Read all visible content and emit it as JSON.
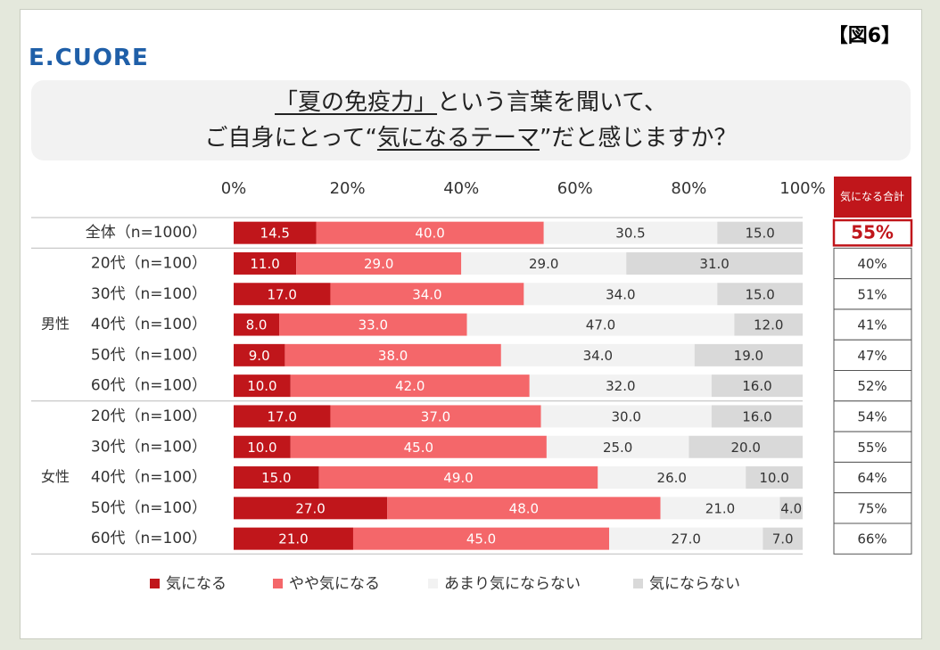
{
  "header": {
    "logo": "E.CUORE",
    "figure_label": "【図6】",
    "title": [
      [
        "「夏の免疫力」",
        "という言葉を聞いて、"
      ],
      [
        "ご自身にとって“",
        "気になるテーマ",
        "”だと感じますか？"
      ]
    ]
  },
  "chart_data": {
    "type": "stacked-bar-horizontal",
    "categories": [
      "全体（n=1000）",
      "20代（n=100）",
      "30代（n=100）",
      "40代（n=100）",
      "50代（n=100）",
      "60代（n=100）",
      "20代（n=100）",
      "30代（n=100）",
      "40代（n=100）",
      "50代（n=100）",
      "60代（n=100）"
    ],
    "groups": [
      {
        "name": "男性",
        "rows": 5
      },
      {
        "name": "女性",
        "rows": 5
      }
    ],
    "xlim": [
      0,
      100
    ],
    "xticks": [
      {
        "value": 0,
        "label": "0%"
      },
      {
        "value": 20,
        "label": "20%"
      },
      {
        "value": 40,
        "label": "40%"
      },
      {
        "value": 60,
        "label": "60%"
      },
      {
        "value": 80,
        "label": "80%"
      },
      {
        "value": 100,
        "label": "100%"
      }
    ],
    "series": [
      {
        "name": "気になる",
        "color": "#c0161b",
        "values": [
          14.5,
          11,
          17,
          8,
          9,
          10,
          17,
          10,
          15,
          27,
          21
        ],
        "value_labels": [
          "14.5",
          "11.0",
          "17.0",
          "8.0",
          "9.0",
          "10.0",
          "17.0",
          "10.0",
          "15.0",
          "27.0",
          "21.0"
        ]
      },
      {
        "name": "やや気になる",
        "color": "#f4676a",
        "values": [
          40,
          29,
          34,
          33,
          38,
          42,
          37,
          45,
          49,
          48,
          45
        ],
        "value_labels": [
          "40.0",
          "29.0",
          "34.0",
          "33.0",
          "38.0",
          "42.0",
          "37.0",
          "45.0",
          "49.0",
          "48.0",
          "45.0"
        ]
      },
      {
        "name": "あまり気にならない",
        "color": "#f2f2f2",
        "values": [
          30.5,
          29,
          34,
          47,
          34,
          32,
          30,
          25,
          26,
          21,
          27
        ],
        "value_labels": [
          "30.5",
          "29.0",
          "34.0",
          "47.0",
          "34.0",
          "32.0",
          "30.0",
          "25.0",
          "26.0",
          "21.0",
          "27.0"
        ]
      },
      {
        "name": "気にならない",
        "color": "#d9d9d9",
        "values": [
          15,
          31,
          15,
          12,
          19,
          16,
          16,
          20,
          10,
          4,
          7
        ],
        "value_labels": [
          "15.0",
          "31.0",
          "15.0",
          "12.0",
          "19.0",
          "16.0",
          "16.0",
          "20.0",
          "10.0",
          "4.0",
          "7.0"
        ]
      }
    ],
    "totals": {
      "title": "気になる合計",
      "values": [
        55,
        40,
        51,
        41,
        47,
        52,
        54,
        55,
        64,
        75,
        66
      ],
      "value_labels": [
        "55%",
        "40%",
        "51%",
        "41%",
        "47%",
        "52%",
        "54%",
        "55%",
        "64%",
        "75%",
        "66%"
      ]
    }
  }
}
